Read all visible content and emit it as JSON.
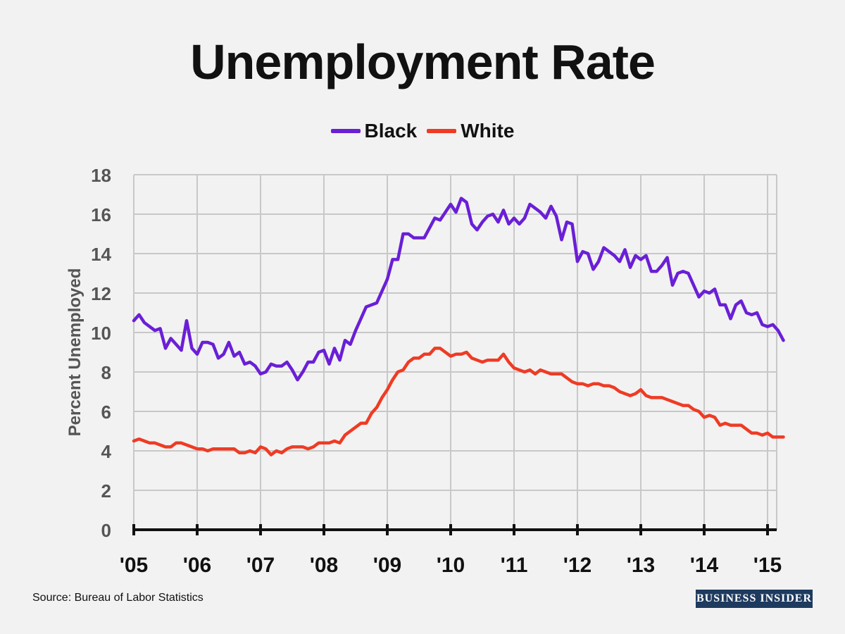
{
  "chart_data": {
    "type": "line",
    "title": "Unemployment Rate",
    "ylabel": "Percent Unemployed",
    "xlabel": "",
    "ylim": [
      0,
      18
    ],
    "yticks": [
      0,
      2,
      4,
      6,
      8,
      10,
      12,
      14,
      16,
      18
    ],
    "xticks": [
      "'05",
      "'06",
      "'07",
      "'08",
      "'09",
      "'10",
      "'11",
      "'12",
      "'13",
      "'14",
      "'15"
    ],
    "x_start": "2005-01",
    "x_end": "2015-04",
    "grid": true,
    "legend_position": "top-center",
    "series": [
      {
        "name": "Black",
        "color": "#6a1fd6",
        "values": [
          10.6,
          10.9,
          10.5,
          10.3,
          10.1,
          10.2,
          9.2,
          9.7,
          9.4,
          9.1,
          10.6,
          9.2,
          8.9,
          9.5,
          9.5,
          9.4,
          8.7,
          8.9,
          9.5,
          8.8,
          9.0,
          8.4,
          8.5,
          8.3,
          7.9,
          8.0,
          8.4,
          8.3,
          8.3,
          8.5,
          8.1,
          7.6,
          8.0,
          8.5,
          8.5,
          9.0,
          9.1,
          8.4,
          9.2,
          8.6,
          9.6,
          9.4,
          10.1,
          10.7,
          11.3,
          11.4,
          11.5,
          12.1,
          12.7,
          13.7,
          13.7,
          15.0,
          15.0,
          14.8,
          14.8,
          14.8,
          15.3,
          15.8,
          15.7,
          16.1,
          16.5,
          16.1,
          16.8,
          16.6,
          15.5,
          15.2,
          15.6,
          15.9,
          16.0,
          15.6,
          16.2,
          15.5,
          15.8,
          15.5,
          15.8,
          16.5,
          16.3,
          16.1,
          15.8,
          16.4,
          15.9,
          14.7,
          15.6,
          15.5,
          13.6,
          14.1,
          14.0,
          13.2,
          13.6,
          14.3,
          14.1,
          13.9,
          13.6,
          14.2,
          13.3,
          13.9,
          13.7,
          13.9,
          13.1,
          13.1,
          13.4,
          13.8,
          12.4,
          13.0,
          13.1,
          13.0,
          12.4,
          11.8,
          12.1,
          12.0,
          12.2,
          11.4,
          11.4,
          10.7,
          11.4,
          11.6,
          11.0,
          10.9,
          11.0,
          10.4,
          10.3,
          10.4,
          10.1,
          9.6
        ]
      },
      {
        "name": "White",
        "color": "#ef3b24",
        "values": [
          4.5,
          4.6,
          4.5,
          4.4,
          4.4,
          4.3,
          4.2,
          4.2,
          4.4,
          4.4,
          4.3,
          4.2,
          4.1,
          4.1,
          4.0,
          4.1,
          4.1,
          4.1,
          4.1,
          4.1,
          3.9,
          3.9,
          4.0,
          3.9,
          4.2,
          4.1,
          3.8,
          4.0,
          3.9,
          4.1,
          4.2,
          4.2,
          4.2,
          4.1,
          4.2,
          4.4,
          4.4,
          4.4,
          4.5,
          4.4,
          4.8,
          5.0,
          5.2,
          5.4,
          5.4,
          5.9,
          6.2,
          6.7,
          7.1,
          7.6,
          8.0,
          8.1,
          8.5,
          8.7,
          8.7,
          8.9,
          8.9,
          9.2,
          9.2,
          9.0,
          8.8,
          8.9,
          8.9,
          9.0,
          8.7,
          8.6,
          8.5,
          8.6,
          8.6,
          8.6,
          8.9,
          8.5,
          8.2,
          8.1,
          8.0,
          8.1,
          7.9,
          8.1,
          8.0,
          7.9,
          7.9,
          7.9,
          7.7,
          7.5,
          7.4,
          7.4,
          7.3,
          7.4,
          7.4,
          7.3,
          7.3,
          7.2,
          7.0,
          6.9,
          6.8,
          6.9,
          7.1,
          6.8,
          6.7,
          6.7,
          6.7,
          6.6,
          6.5,
          6.4,
          6.3,
          6.3,
          6.1,
          6.0,
          5.7,
          5.8,
          5.7,
          5.3,
          5.4,
          5.3,
          5.3,
          5.3,
          5.1,
          4.9,
          4.9,
          4.8,
          4.9,
          4.7,
          4.7,
          4.7
        ]
      }
    ]
  },
  "source": "Source: Bureau of Labor Statistics",
  "brand": "BUSINESS INSIDER",
  "colors": {
    "background": "#f2f2f2",
    "grid": "#c8c8c8",
    "axis": "#111111",
    "tick_text": "#555555"
  }
}
